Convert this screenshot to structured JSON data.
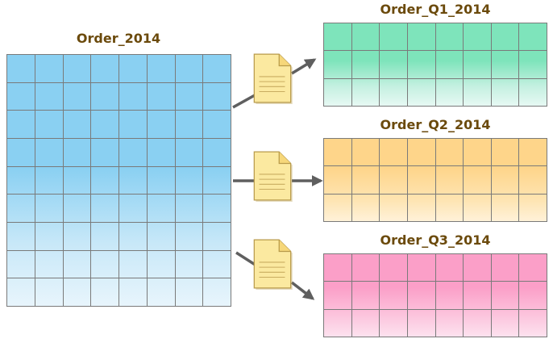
{
  "source": {
    "title": "Order_2014",
    "columns": 8,
    "rows": 9,
    "color": "#8ad0f2"
  },
  "outputs": [
    {
      "title": "Order_Q1_2014",
      "columns": 8,
      "rows": 3,
      "color": "#7ee4bb"
    },
    {
      "title": "Order_Q2_2014",
      "columns": 8,
      "rows": 3,
      "color": "#fed58a"
    },
    {
      "title": "Order_Q3_2014",
      "columns": 8,
      "rows": 3,
      "color": "#fb9fc8"
    }
  ],
  "document_icon": "document-icon",
  "colors": {
    "title_text": "#6b4a0c",
    "arrow": "#5f5f5f",
    "grid_line": "#7a7a7a",
    "document_fill": "#fbe9a0",
    "document_stroke": "#b89a4a"
  }
}
